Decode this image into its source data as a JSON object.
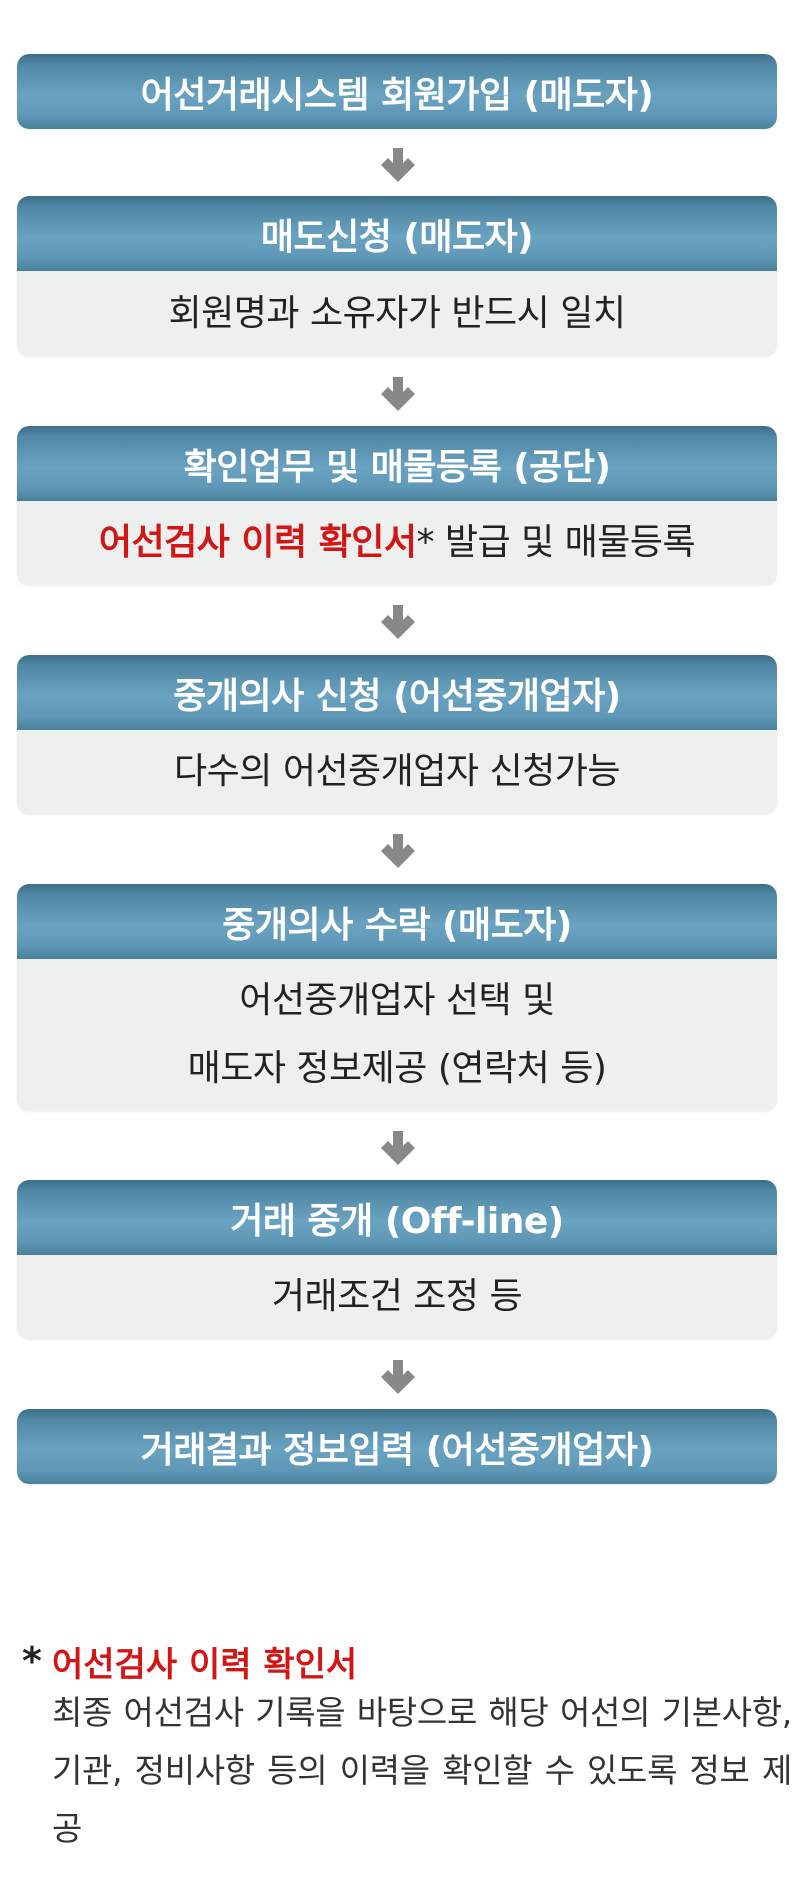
{
  "colors": {
    "header_blue": "#5e98b6",
    "body_gray": "#eeefef",
    "highlight_red": "#d21616",
    "arrow_gray": "#888888"
  },
  "steps": [
    {
      "title": "어선거래시스템 회원가입 (매도자)"
    },
    {
      "title": "매도신청 (매도자)",
      "lines": [
        "회원명과 소유자가 반드시 일치"
      ]
    },
    {
      "title": "확인업무 및 매물등록 (공단)",
      "highlight": "어선검사 이력 확인서",
      "star": "*",
      "rest": " 발급 및 매물등록"
    },
    {
      "title": "중개의사 신청 (어선중개업자)",
      "lines": [
        "다수의 어선중개업자 신청가능"
      ]
    },
    {
      "title": "중개의사 수락 (매도자)",
      "lines": [
        "어선중개업자 선택 및",
        "매도자 정보제공 (연락처 등)"
      ]
    },
    {
      "title": "거래 중개 (Off-line)",
      "lines": [
        "거래조건 조정 등"
      ]
    },
    {
      "title": "거래결과 정보입력 (어선중개업자)"
    }
  ],
  "footnote": {
    "star": "*",
    "title": "어선검사 이력 확인서",
    "text": "최종 어선검사 기록을 바탕으로 해당 어선의 기본사항, 기관, 정비사항 등의 이력을 확인할 수 있도록 정보 제공"
  }
}
